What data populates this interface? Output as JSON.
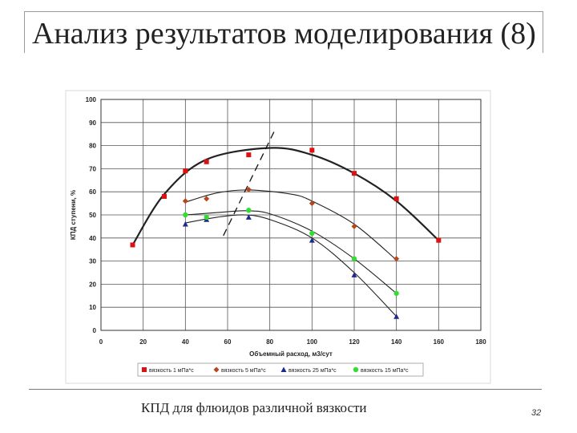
{
  "slide": {
    "title": "Анализ результатов моделирования (8)",
    "caption": "КПД для флюидов различной вязкости",
    "page_number": "32"
  },
  "chart_data": {
    "type": "scatter",
    "xlabel": "Объемный расход, м3/сут",
    "ylabel": "КПД ступени, %",
    "xlim": [
      0,
      180
    ],
    "ylim": [
      0,
      100
    ],
    "x_ticks": [
      0,
      20,
      40,
      60,
      80,
      100,
      120,
      140,
      160,
      180
    ],
    "y_ticks": [
      0,
      10,
      20,
      30,
      40,
      50,
      60,
      70,
      80,
      90,
      100
    ],
    "grid": true,
    "legend_position": "bottom",
    "series": [
      {
        "name": "вязкость 1 мПа*с",
        "marker": "square",
        "color": "#dd1111",
        "x": [
          15,
          30,
          40,
          50,
          70,
          100,
          120,
          140,
          160
        ],
        "y": [
          37,
          58,
          69,
          73,
          76,
          78,
          68,
          57,
          39
        ],
        "fit": [
          [
            15,
            37
          ],
          [
            30,
            59
          ],
          [
            50,
            74
          ],
          [
            80,
            79
          ],
          [
            100,
            76
          ],
          [
            120,
            68
          ],
          [
            140,
            56
          ],
          [
            160,
            39
          ]
        ],
        "fit_color": "#222222",
        "fit_width": 2.2
      },
      {
        "name": "вязкость 5 мПа*с",
        "marker": "diamond",
        "color": "#b8461b",
        "x": [
          40,
          50,
          70,
          100,
          120,
          140
        ],
        "y": [
          56,
          57,
          61,
          55,
          45,
          31
        ],
        "fit": [
          [
            40,
            55.5
          ],
          [
            55,
            59.5
          ],
          [
            70,
            60.8
          ],
          [
            90,
            59
          ],
          [
            100,
            56
          ],
          [
            120,
            46
          ],
          [
            140,
            30.5
          ]
        ],
        "fit_color": "#222222",
        "fit_width": 1.1
      },
      {
        "name": "вязкость 25 мПа*с",
        "marker": "triangle",
        "color": "#1f2b8c",
        "x": [
          40,
          50,
          70,
          100,
          120,
          140
        ],
        "y": [
          46,
          48,
          49,
          39,
          24,
          6
        ],
        "fit": [
          [
            40,
            46.5
          ],
          [
            55,
            49
          ],
          [
            68,
            50
          ],
          [
            80,
            48
          ],
          [
            100,
            40
          ],
          [
            120,
            25
          ],
          [
            140,
            6
          ]
        ],
        "fit_color": "#222222",
        "fit_width": 1.1
      },
      {
        "name": "вязкость 15 мПа*с",
        "marker": "circle",
        "color": "#33dd33",
        "x": [
          40,
          50,
          70,
          100,
          120,
          140
        ],
        "y": [
          50,
          49,
          52,
          42,
          31,
          16
        ],
        "fit": [
          [
            40,
            50
          ],
          [
            55,
            51
          ],
          [
            68,
            51.8
          ],
          [
            80,
            50.5
          ],
          [
            100,
            43
          ],
          [
            120,
            31
          ],
          [
            140,
            16
          ]
        ],
        "fit_color": "#222222",
        "fit_width": 1.1
      }
    ],
    "optimal_line": {
      "style": "dashed",
      "points": [
        [
          58,
          41
        ],
        [
          82,
          86
        ]
      ]
    }
  }
}
